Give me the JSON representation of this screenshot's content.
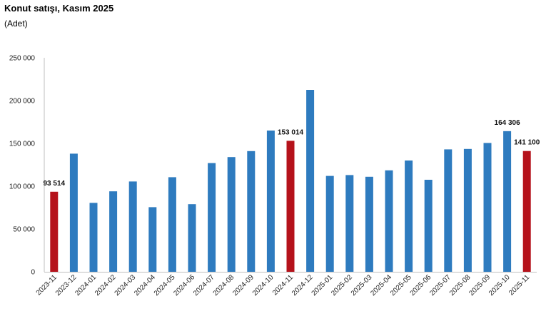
{
  "chart_data": {
    "type": "bar",
    "title": "Konut satışı, Kasım 2025",
    "subtitle": "(Adet)",
    "categories": [
      "2023-11",
      "2023-12",
      "2024-01",
      "2024-02",
      "2024-03",
      "2024-04",
      "2024-05",
      "2024-06",
      "2024-07",
      "2024-08",
      "2024-09",
      "2024-10",
      "2024-11",
      "2024-12",
      "2025-01",
      "2025-02",
      "2025-03",
      "2025-04",
      "2025-05",
      "2025-06",
      "2025-07",
      "2025-08",
      "2025-09",
      "2025-10",
      "2025-11"
    ],
    "values": [
      93514,
      138000,
      80500,
      94000,
      105500,
      75500,
      110500,
      79000,
      127000,
      134000,
      141000,
      165000,
      153014,
      212500,
      112000,
      113000,
      111000,
      118500,
      130000,
      107500,
      143000,
      143500,
      150500,
      164306,
      141100
    ],
    "highlight": [
      true,
      false,
      false,
      false,
      false,
      false,
      false,
      false,
      false,
      false,
      false,
      false,
      true,
      false,
      false,
      false,
      false,
      false,
      false,
      false,
      false,
      false,
      false,
      false,
      true
    ],
    "data_labels": {
      "0": "93 514",
      "12": "153 014",
      "23": "164 306",
      "24": "141 100"
    },
    "ylim": [
      0,
      250000
    ],
    "yticks": [
      0,
      50000,
      100000,
      150000,
      200000,
      250000
    ],
    "ytick_labels": [
      "0",
      "50 000",
      "100 000",
      "150 000",
      "200 000",
      "250 000"
    ],
    "xlabel": "",
    "ylabel": "",
    "grid": false,
    "legend": "none",
    "colors": {
      "bar": "#2e7bbf",
      "highlight": "#b5121b",
      "axis": "#bfbfbf"
    }
  }
}
